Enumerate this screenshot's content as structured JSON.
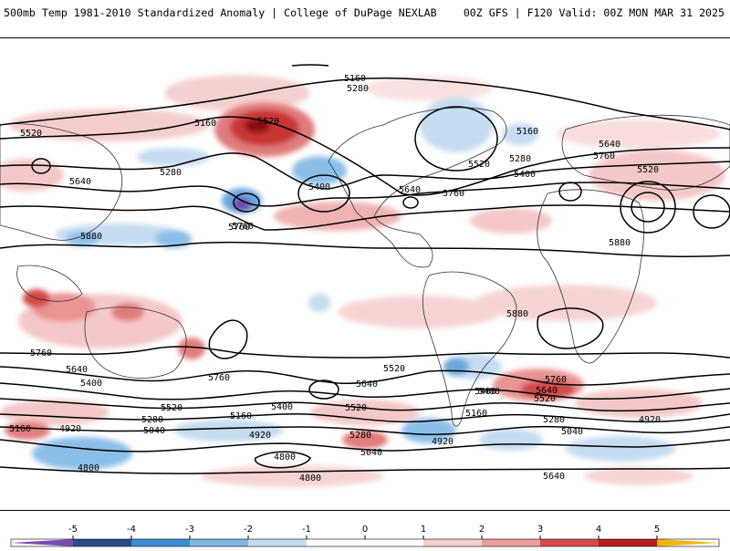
{
  "header": {
    "title": "500mb Temp 1981-2010 Standardized Anomaly | College of DuPage NEXLAB",
    "run_info": "00Z GFS | F120 Valid: 00Z MON MAR 31 2025"
  },
  "map": {
    "contour_labels": [
      {
        "text": "5160",
        "id": "c1"
      },
      {
        "text": "5280",
        "id": "c2"
      },
      {
        "text": "5520",
        "id": "c3"
      },
      {
        "text": "5160",
        "id": "c4"
      },
      {
        "text": "5520",
        "id": "c5"
      },
      {
        "text": "5280",
        "id": "c6"
      },
      {
        "text": "5640",
        "id": "c7"
      },
      {
        "text": "5400",
        "id": "c8"
      },
      {
        "text": "5760",
        "id": "c9"
      },
      {
        "text": "5880",
        "id": "c10"
      },
      {
        "text": "5160",
        "id": "c11"
      },
      {
        "text": "5280",
        "id": "c12"
      },
      {
        "text": "5520",
        "id": "c13"
      },
      {
        "text": "5400",
        "id": "c14"
      },
      {
        "text": "5640",
        "id": "c15"
      },
      {
        "text": "5760",
        "id": "c16"
      },
      {
        "text": "5640",
        "id": "c17"
      },
      {
        "text": "5760",
        "id": "c18"
      },
      {
        "text": "5520",
        "id": "c19"
      },
      {
        "text": "5880",
        "id": "c20"
      },
      {
        "text": "5880",
        "id": "c21"
      },
      {
        "text": "5760",
        "id": "c22"
      },
      {
        "text": "5640",
        "id": "c23"
      },
      {
        "text": "5400",
        "id": "c24"
      },
      {
        "text": "5520",
        "id": "c25"
      },
      {
        "text": "5280",
        "id": "c26"
      },
      {
        "text": "5160",
        "id": "c27"
      },
      {
        "text": "4920",
        "id": "c28"
      },
      {
        "text": "5040",
        "id": "c29"
      },
      {
        "text": "5760",
        "id": "c30"
      },
      {
        "text": "5640",
        "id": "c31"
      },
      {
        "text": "5400",
        "id": "c32"
      },
      {
        "text": "5520",
        "id": "c33"
      },
      {
        "text": "5160",
        "id": "c34"
      },
      {
        "text": "4920",
        "id": "c35"
      },
      {
        "text": "4800",
        "id": "c36"
      },
      {
        "text": "5040",
        "id": "c37"
      },
      {
        "text": "5280",
        "id": "c38"
      },
      {
        "text": "4920",
        "id": "c39"
      },
      {
        "text": "5400",
        "id": "c40"
      },
      {
        "text": "5520",
        "id": "c41"
      },
      {
        "text": "5640",
        "id": "c42"
      },
      {
        "text": "5760",
        "id": "c43"
      },
      {
        "text": "5280",
        "id": "c44"
      },
      {
        "text": "5040",
        "id": "c45"
      },
      {
        "text": "4920",
        "id": "c46"
      },
      {
        "text": "4800",
        "id": "c47"
      },
      {
        "text": "4800",
        "id": "c48"
      },
      {
        "text": "5160",
        "id": "c49"
      },
      {
        "text": "5400",
        "id": "c50"
      },
      {
        "text": "5640",
        "id": "c51"
      },
      {
        "text": "5760",
        "id": "c52"
      },
      {
        "text": "5520",
        "id": "c53"
      }
    ]
  },
  "colorbar": {
    "ticks": [
      "-5",
      "-4",
      "-3",
      "-2",
      "-1",
      "0",
      "1",
      "2",
      "3",
      "4",
      "5"
    ],
    "colors": {
      "neg5": "#7a4bb5",
      "neg4": "#2b4c8c",
      "neg3": "#3b8fd4",
      "neg2": "#7fb6e3",
      "neg1": "#c6dcf0",
      "zero": "#ffffff",
      "pos1": "#f6cfcf",
      "pos2": "#eb9c9c",
      "pos3": "#d94b4b",
      "pos4": "#b81d1d",
      "pos5": "#7a0a0a",
      "over": "#f2b705"
    }
  }
}
